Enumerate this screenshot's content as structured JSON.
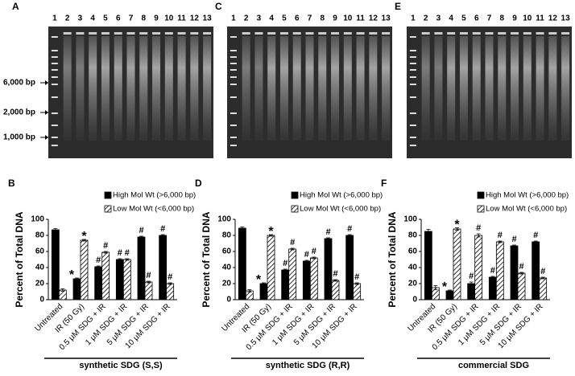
{
  "gels": [
    {
      "label": "A",
      "lanes": [
        "1",
        "2",
        "3",
        "4",
        "5",
        "6",
        "7",
        "8",
        "9",
        "10",
        "11",
        "12",
        "13"
      ],
      "markers": [
        "6,000 bp",
        "2,000 bp",
        "1,000 bp"
      ]
    },
    {
      "label": "C",
      "lanes": [
        "1",
        "2",
        "3",
        "4",
        "5",
        "6",
        "7",
        "8",
        "9",
        "10",
        "11",
        "12",
        "13"
      ]
    },
    {
      "label": "E",
      "lanes": [
        "1",
        "2",
        "3",
        "4",
        "5",
        "6",
        "7",
        "8",
        "9",
        "10",
        "11",
        "12",
        "13"
      ]
    }
  ],
  "chart_data": [
    {
      "type": "bar",
      "panel": "B",
      "ylabel": "Percent of Total DNA",
      "xlabel": "synthetic SDG (S,S)",
      "categories": [
        "Untreated",
        "IR (50 Gy)",
        "0.5 μM SDG + IR",
        "1 μM SDG + IR",
        "5 μM SDG + IR",
        "10 μM SDG + IR"
      ],
      "ylim": [
        0,
        100
      ],
      "yticks": [
        0,
        20,
        40,
        60,
        80,
        100
      ],
      "legend": "top-right",
      "series": [
        {
          "name": "High Mol Wt (>6,000 bp)",
          "color": "#000000",
          "hatch": false,
          "values": [
            87,
            26,
            41,
            50,
            78,
            80
          ],
          "errors": [
            1.5,
            1,
            1,
            1,
            1,
            1
          ],
          "annotations": [
            null,
            "*",
            "#",
            "#",
            "#",
            "#"
          ]
        },
        {
          "name": "Low Mol Wt (<6,000 bp)",
          "color": "#000000",
          "hatch": true,
          "values": [
            12,
            74,
            59,
            50,
            22,
            20
          ],
          "errors": [
            1.5,
            1,
            1,
            1,
            1,
            1
          ],
          "annotations": [
            null,
            "*",
            "#",
            "#",
            "#",
            "#"
          ]
        }
      ]
    },
    {
      "type": "bar",
      "panel": "D",
      "ylabel": "Percent of Total DNA",
      "xlabel": "synthetic SDG (R,R)",
      "categories": [
        "Untreated",
        "IR (50 Gy)",
        "0.5 μM SDG + IR",
        "1 μM SDG + IR",
        "5 μM SDG + IR",
        "10 μM SDG + IR"
      ],
      "ylim": [
        0,
        100
      ],
      "yticks": [
        0,
        20,
        40,
        60,
        80,
        100
      ],
      "legend": "top-right",
      "series": [
        {
          "name": "High Mol Wt (>6,000 bp)",
          "color": "#000000",
          "hatch": false,
          "values": [
            89,
            20,
            37,
            48,
            76,
            80
          ],
          "errors": [
            1.5,
            1,
            1,
            1,
            1,
            1
          ],
          "annotations": [
            null,
            "*",
            "#",
            "#",
            "#",
            "#"
          ]
        },
        {
          "name": "Low Mol Wt (<6,000 bp)",
          "color": "#000000",
          "hatch": true,
          "values": [
            11,
            80,
            63,
            52,
            24,
            20
          ],
          "errors": [
            1.5,
            1,
            1,
            1,
            1,
            1
          ],
          "annotations": [
            null,
            "*",
            "#",
            "#",
            "#",
            "#"
          ]
        }
      ]
    },
    {
      "type": "bar",
      "panel": "F",
      "ylabel": "Percent of Total DNA",
      "xlabel": "commercial SDG",
      "categories": [
        "Untreated",
        "IR (50 Gy)",
        "0.5 μM SDG + IR",
        "1 μM SDG + IR",
        "5 μM SDG + IR",
        "10 μM SDG + IR"
      ],
      "ylim": [
        0,
        100
      ],
      "yticks": [
        0,
        20,
        40,
        60,
        80,
        100
      ],
      "legend": "top-right",
      "series": [
        {
          "name": "High Mol Wt (>6,000 bp)",
          "color": "#000000",
          "hatch": false,
          "values": [
            85,
            11,
            20,
            28,
            67,
            72
          ],
          "errors": [
            2.5,
            1,
            2,
            1,
            1,
            1
          ],
          "annotations": [
            null,
            "*",
            "#",
            "#",
            "#",
            "#"
          ]
        },
        {
          "name": "Low Mol Wt (<6,000 bp)",
          "color": "#000000",
          "hatch": true,
          "values": [
            15,
            88,
            80,
            72,
            33,
            27
          ],
          "errors": [
            2.5,
            1.5,
            2,
            1,
            1,
            1
          ],
          "annotations": [
            null,
            "*",
            "#",
            "#",
            "#",
            "#"
          ]
        }
      ]
    }
  ]
}
